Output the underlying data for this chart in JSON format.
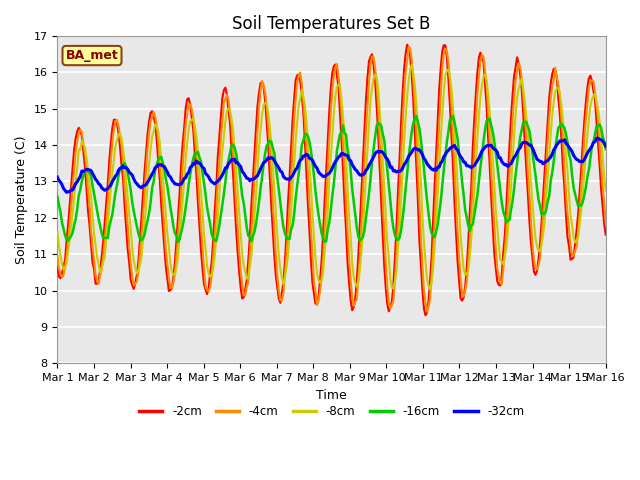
{
  "title": "Soil Temperatures Set B",
  "xlabel": "Time",
  "ylabel": "Soil Temperature (C)",
  "ylim": [
    8.0,
    17.0
  ],
  "yticks": [
    8.0,
    9.0,
    10.0,
    11.0,
    12.0,
    13.0,
    14.0,
    15.0,
    16.0,
    17.0
  ],
  "xtick_labels": [
    "Mar 1",
    "Mar 2",
    "Mar 3",
    "Mar 4",
    "Mar 5",
    "Mar 6",
    "Mar 7",
    "Mar 8",
    "Mar 9",
    "Mar 10",
    "Mar 11",
    "Mar 12",
    "Mar 13",
    "Mar 14",
    "Mar 15",
    "Mar 16"
  ],
  "series_colors": [
    "#FF0000",
    "#FF8C00",
    "#CCCC00",
    "#00CC00",
    "#0000FF"
  ],
  "series_labels": [
    "-2cm",
    "-4cm",
    "-8cm",
    "-16cm",
    "-32cm"
  ],
  "series_linewidths": [
    1.5,
    1.5,
    1.5,
    1.8,
    2.2
  ],
  "legend_label": "BA_met",
  "legend_bg": "#FFFF99",
  "legend_border": "#8B0000",
  "plot_bg": "#E8E8E8",
  "title_fontsize": 12,
  "axis_fontsize": 9,
  "tick_fontsize": 8
}
